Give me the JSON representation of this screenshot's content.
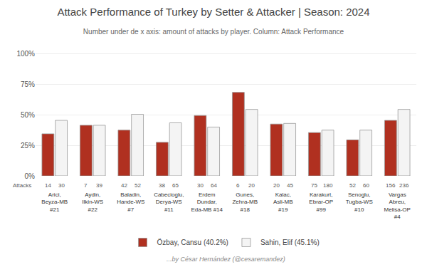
{
  "chart_data": {
    "type": "bar",
    "title": "Attack Performance of Turkey by Setter & Attacker | Season: 2024",
    "subtitle": "Number under de x axis: amount of attacks by player. Column: Attack Performance",
    "credit": "...by César Hernández (@cesaremandez)",
    "attacks_label": "Attacks",
    "categories": [
      "Arici,\nBeyza-MB\n#21",
      "Aydin,\nIlkin-WS\n#22",
      "Baladin,\nHande-WS\n#7",
      "Cabecioglu,\nDerya-WS\n#11",
      "Erdem\nDundar,\nEda-MB #14",
      "Gunes,\nZehra-MB\n#18",
      "Kalac,\nAsli-MB\n#19",
      "Karakurt,\nEbrar-OP\n#99",
      "Senoglu,\nTugba-WS\n#10",
      "Vargas\nAbreu,\nMelisa-OP\n#4"
    ],
    "series": [
      {
        "name": "Özbay, Cansu (40.2%)",
        "color": "#b03020",
        "values": [
          0.345,
          0.415,
          0.375,
          0.275,
          0.495,
          0.685,
          0.425,
          0.355,
          0.295,
          0.455
        ],
        "attacks": [
          14,
          7,
          42,
          38,
          30,
          6,
          20,
          75,
          52,
          156
        ]
      },
      {
        "name": "Sahin, Elif (45.1%)",
        "color": "#f4f4f4",
        "values": [
          0.455,
          0.415,
          0.505,
          0.435,
          0.4,
          0.545,
          0.43,
          0.375,
          0.375,
          0.545
        ],
        "attacks": [
          30,
          39,
          52,
          65,
          64,
          20,
          45,
          180,
          60,
          236
        ]
      }
    ],
    "ylim": [
      0,
      1.08
    ],
    "yticks": [
      {
        "value": 0,
        "label": "0%"
      },
      {
        "value": 0.25,
        "label": "25%"
      },
      {
        "value": 0.5,
        "label": "50%"
      },
      {
        "value": 0.75,
        "label": "75%"
      },
      {
        "value": 1,
        "label": "100%"
      }
    ],
    "grid": true,
    "legend": "bottom"
  }
}
